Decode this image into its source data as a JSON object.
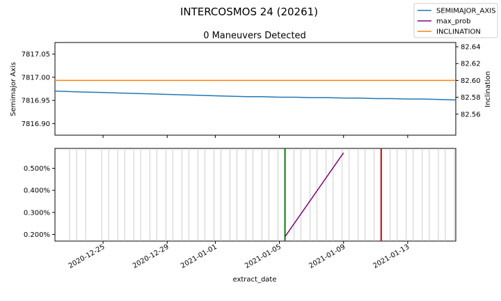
{
  "figure": {
    "title": "INTERCOSMOS 24 (20261)",
    "xlabel": "extract_date",
    "x_ticks": [
      "2020-12-25",
      "2020-12-29",
      "2021-01-01",
      "2021-01-05",
      "2021-01-09",
      "2021-01-13"
    ]
  },
  "legend": {
    "placement": "top-right",
    "entries": [
      {
        "label": "SEMIMAJOR_AXIS",
        "color": "#1f77b4"
      },
      {
        "label": "max_prob",
        "color": "#800080"
      },
      {
        "label": "INCLINATION",
        "color": "#ff7f0e"
      }
    ]
  },
  "chart_data": [
    {
      "type": "line",
      "title": "0 Maneuvers Detected",
      "ylabel": "Semimajor Axis",
      "ylabel_right": "Inclination",
      "xlim": [
        "2020-12-22",
        "2021-01-16"
      ],
      "ylim": [
        7816.875,
        7817.075
      ],
      "ylim_right": [
        82.535,
        82.645
      ],
      "y_ticks": [
        "7816.90",
        "7816.95",
        "7817.00",
        "7817.05"
      ],
      "y_ticks_right": [
        "82.56",
        "82.58",
        "82.60",
        "82.62",
        "82.64"
      ],
      "series": [
        {
          "name": "SEMIMAJOR_AXIS",
          "color": "#1f77b4",
          "axis": "left",
          "x": [
            "2020-12-22",
            "2020-12-23",
            "2020-12-24",
            "2020-12-25",
            "2020-12-26",
            "2020-12-27",
            "2020-12-28",
            "2020-12-29",
            "2020-12-30",
            "2020-12-31",
            "2021-01-01",
            "2021-01-02",
            "2021-01-03",
            "2021-01-04",
            "2021-01-05",
            "2021-01-06",
            "2021-01-07",
            "2021-01-08",
            "2021-01-09",
            "2021-01-10",
            "2021-01-11",
            "2021-01-12",
            "2021-01-13",
            "2021-01-14",
            "2021-01-15",
            "2021-01-16"
          ],
          "values": [
            7816.97,
            7816.969,
            7816.968,
            7816.967,
            7816.966,
            7816.965,
            7816.964,
            7816.963,
            7816.962,
            7816.961,
            7816.96,
            7816.959,
            7816.958,
            7816.958,
            7816.957,
            7816.957,
            7816.956,
            7816.956,
            7816.955,
            7816.955,
            7816.954,
            7816.954,
            7816.953,
            7816.953,
            7816.952,
            7816.951
          ]
        },
        {
          "name": "INCLINATION",
          "color": "#ff7f0e",
          "axis": "right",
          "x": [
            "2020-12-22",
            "2020-12-27",
            "2021-01-01",
            "2021-01-06",
            "2021-01-11",
            "2021-01-16"
          ],
          "values": [
            82.6,
            82.6,
            82.6,
            82.6,
            82.6,
            82.6
          ]
        }
      ]
    },
    {
      "type": "line",
      "ylim": [
        0.0017,
        0.0059
      ],
      "y_ticks": [
        "0.200%",
        "0.300%",
        "0.400%",
        "0.500%"
      ],
      "y_tick_values": [
        0.002,
        0.003,
        0.004,
        0.005
      ],
      "series": [
        {
          "name": "max_prob",
          "color": "#800080",
          "x": [
            "2021-01-05",
            "2021-01-09"
          ],
          "values": [
            0.0019,
            0.0057
          ]
        }
      ],
      "event_lines": {
        "color": "#c0c0c0",
        "dates": [
          "2020-12-23",
          "2020-12-23",
          "2020-12-24",
          "2020-12-25",
          "2020-12-25",
          "2020-12-26",
          "2020-12-26",
          "2020-12-27",
          "2020-12-27",
          "2020-12-28",
          "2020-12-28",
          "2020-12-29",
          "2020-12-29",
          "2020-12-30",
          "2020-12-30",
          "2020-12-31",
          "2020-12-31",
          "2021-01-01",
          "2021-01-01",
          "2021-01-02",
          "2021-01-02",
          "2021-01-03",
          "2021-01-03",
          "2021-01-04",
          "2021-01-04",
          "2021-01-05",
          "2021-01-06",
          "2021-01-06",
          "2021-01-07",
          "2021-01-07",
          "2021-01-08",
          "2021-01-08",
          "2021-01-09",
          "2021-01-09",
          "2021-01-10",
          "2021-01-10",
          "2021-01-11",
          "2021-01-11",
          "2021-01-12",
          "2021-01-12",
          "2021-01-13",
          "2021-01-13",
          "2021-01-14",
          "2021-01-14",
          "2021-01-15",
          "2021-01-15",
          "2021-01-16"
        ]
      },
      "markers": [
        {
          "date": "2021-01-05",
          "color": "#008000"
        },
        {
          "date": "2021-01-11",
          "color": "#cc0000"
        }
      ]
    }
  ]
}
